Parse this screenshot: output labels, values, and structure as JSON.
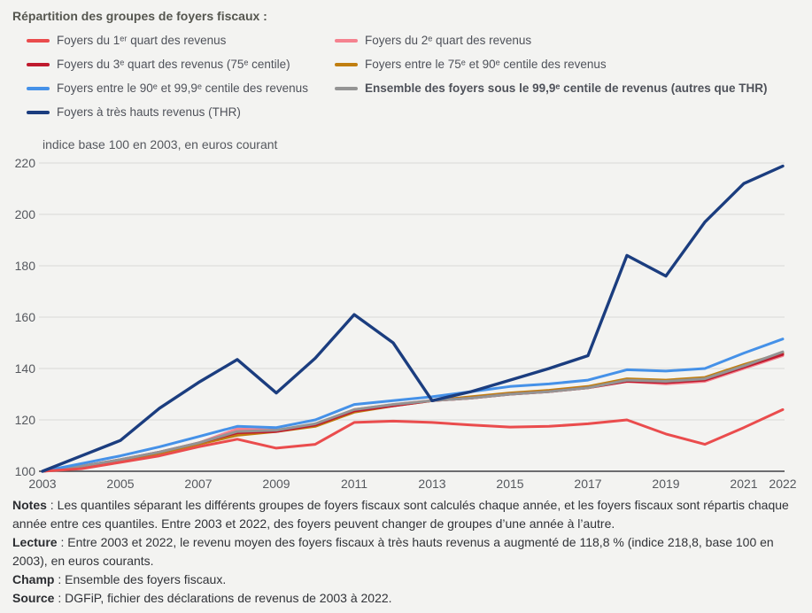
{
  "legend": {
    "title": "Répartition des groupes de foyers fiscaux :"
  },
  "chart_data": {
    "type": "line",
    "title": "indice base 100 en 2003, en euros courant",
    "x": [
      2003,
      2004,
      2005,
      2006,
      2007,
      2008,
      2009,
      2010,
      2011,
      2012,
      2013,
      2014,
      2015,
      2016,
      2017,
      2018,
      2019,
      2020,
      2021,
      2022
    ],
    "x_tick_labels": [
      "2003",
      "2005",
      "2007",
      "2009",
      "2011",
      "2013",
      "2015",
      "2017",
      "2019",
      "2021",
      "2022"
    ],
    "ylim": [
      100,
      220
    ],
    "ytick_step": 20,
    "grid": "horizontal",
    "legend_position": "top",
    "colors": {
      "grid": "#d9d9d6",
      "axis": "#3f4045",
      "tick_text": "#55585e"
    },
    "draw_order": [
      1,
      3,
      2,
      5,
      4,
      0,
      6
    ],
    "series": [
      {
        "id": "quart1",
        "name": "Foyers du 1ᵉʳ quart des revenus",
        "color": "#ea4c4d",
        "legend_bold": false,
        "values": [
          100,
          101,
          103.5,
          106,
          109.5,
          112.5,
          109,
          110.5,
          119,
          119.5,
          119,
          118,
          117.2,
          117.5,
          118.5,
          120,
          114.5,
          110.5,
          117,
          124
        ]
      },
      {
        "id": "quart2",
        "name": "Foyers du 2ᵉ quart des revenus",
        "color": "#f5828f",
        "legend_bold": false,
        "values": [
          100,
          101.5,
          104,
          107,
          111,
          116.5,
          116,
          118,
          124,
          126,
          127.5,
          128.5,
          130,
          131,
          132.5,
          135,
          134,
          135,
          140,
          145
        ]
      },
      {
        "id": "quart3",
        "name": "Foyers du 3ᵉ quart des revenus (75ᵉ centile)",
        "color": "#bf1a2e",
        "legend_bold": false,
        "values": [
          100,
          102,
          104.5,
          107.5,
          111,
          115,
          115.5,
          118,
          123.5,
          125.5,
          127.5,
          128.5,
          130,
          131,
          132.5,
          135,
          134.5,
          135.5,
          140.5,
          145.5
        ]
      },
      {
        "id": "centile75_90",
        "name": "Foyers entre le 75ᵉ et 90ᵉ centile des revenus",
        "color": "#c07e10",
        "legend_bold": false,
        "values": [
          100,
          101.5,
          104,
          107,
          110.5,
          114,
          115.5,
          117.5,
          123,
          125.5,
          127.5,
          129,
          130.5,
          131.5,
          133,
          136,
          135.5,
          136.5,
          141.5,
          146
        ]
      },
      {
        "id": "centile90_999",
        "name": "Foyers entre le 90ᵉ et 99,9ᵉ centile des revenus",
        "color": "#4591e8",
        "legend_bold": false,
        "values": [
          100,
          103,
          106,
          109.5,
          113.5,
          117.5,
          117,
          120,
          126,
          127.5,
          129,
          131,
          133,
          134,
          135.5,
          139.5,
          139,
          140,
          146,
          151.5
        ]
      },
      {
        "id": "ensemble_sous_999",
        "name": "Ensemble des foyers sous le 99,9ᵉ centile de revenus (autres que THR)",
        "color": "#949494",
        "legend_bold": true,
        "values": [
          100,
          102,
          104.5,
          107.5,
          111,
          115.5,
          116,
          118.5,
          124,
          126,
          127.5,
          128.5,
          130,
          131,
          132.5,
          135.5,
          135,
          136,
          141,
          146.5
        ]
      },
      {
        "id": "thr",
        "name": "Foyers à très hauts revenus (THR)",
        "color": "#1b3d7f",
        "legend_bold": false,
        "values": [
          100,
          106,
          112,
          124.5,
          134.5,
          143.5,
          130.5,
          144,
          161,
          150,
          127.5,
          131,
          135.5,
          140,
          145,
          184,
          176,
          197,
          212,
          218.8
        ]
      }
    ]
  },
  "notes": [
    {
      "label": "Notes",
      "text": " : Les quantiles séparant les différents groupes de foyers fiscaux sont calculés chaque année, et les foyers fiscaux sont répartis chaque année entre ces quantiles. Entre 2003 et 2022, des foyers peuvent changer de groupes d’une année à l’autre."
    },
    {
      "label": "Lecture",
      "text": " : Entre 2003 et 2022, le revenu moyen des foyers fiscaux à très hauts revenus a augmenté de 118,8 % (indice 218,8, base 100 en 2003), en euros courants."
    },
    {
      "label": "Champ",
      "text": " : Ensemble des foyers fiscaux."
    },
    {
      "label": "Source",
      "text": " : DGFiP, fichier des déclarations de revenus de 2003 à 2022."
    }
  ]
}
